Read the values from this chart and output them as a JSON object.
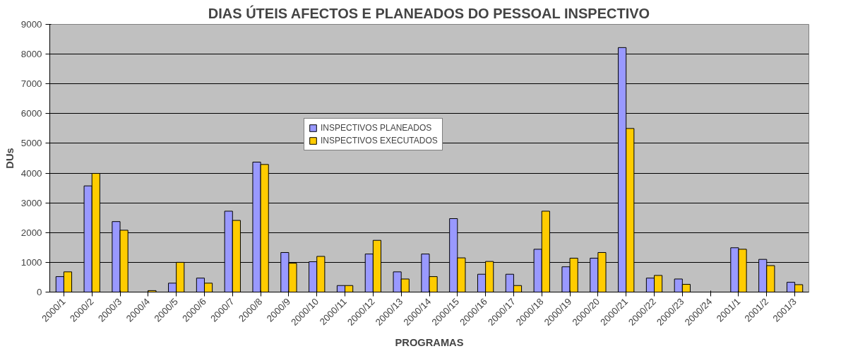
{
  "chart_data": {
    "type": "bar",
    "title": "DIAS ÚTEIS AFECTOS E PLANEADOS DO PESSOAL INSPECTIVO",
    "xlabel": "PROGRAMAS",
    "ylabel": "DUs",
    "categories": [
      "2000/1",
      "2000/2",
      "2000/3",
      "2000/4",
      "2000/5",
      "2000/6",
      "2000/7",
      "2000/8",
      "2000/9",
      "2000/10",
      "2000/11",
      "2000/12",
      "2000/13",
      "2000/14",
      "2000/15",
      "2000/16",
      "2000/17",
      "2000/18",
      "2000/19",
      "2000/20",
      "2000/21",
      "2000/22",
      "2000/23",
      "2000/24",
      "2001/1",
      "2001/2",
      "2001/3"
    ],
    "series": [
      {
        "name": "INSPECTIVOS PLANEADOS",
        "color": "#9999ff",
        "values": [
          520,
          3570,
          2370,
          null,
          300,
          470,
          2720,
          4370,
          1330,
          1020,
          220,
          1280,
          680,
          1280,
          2470,
          600,
          600,
          1440,
          850,
          1140,
          8220,
          470,
          440,
          null,
          1490,
          1100,
          330
        ]
      },
      {
        "name": "INSPECTIVOS EXECUTADOS",
        "color": "#ffcc00",
        "values": [
          680,
          3990,
          2080,
          50,
          1000,
          300,
          2410,
          4290,
          970,
          1200,
          220,
          1740,
          440,
          520,
          1150,
          1030,
          220,
          2720,
          1140,
          1330,
          5500,
          560,
          260,
          null,
          1440,
          890,
          250
        ]
      }
    ],
    "ylim": [
      0,
      9000
    ],
    "yticks": [
      0,
      1000,
      2000,
      3000,
      4000,
      5000,
      6000,
      7000,
      8000,
      9000
    ],
    "grid": "y",
    "legend": "top"
  }
}
